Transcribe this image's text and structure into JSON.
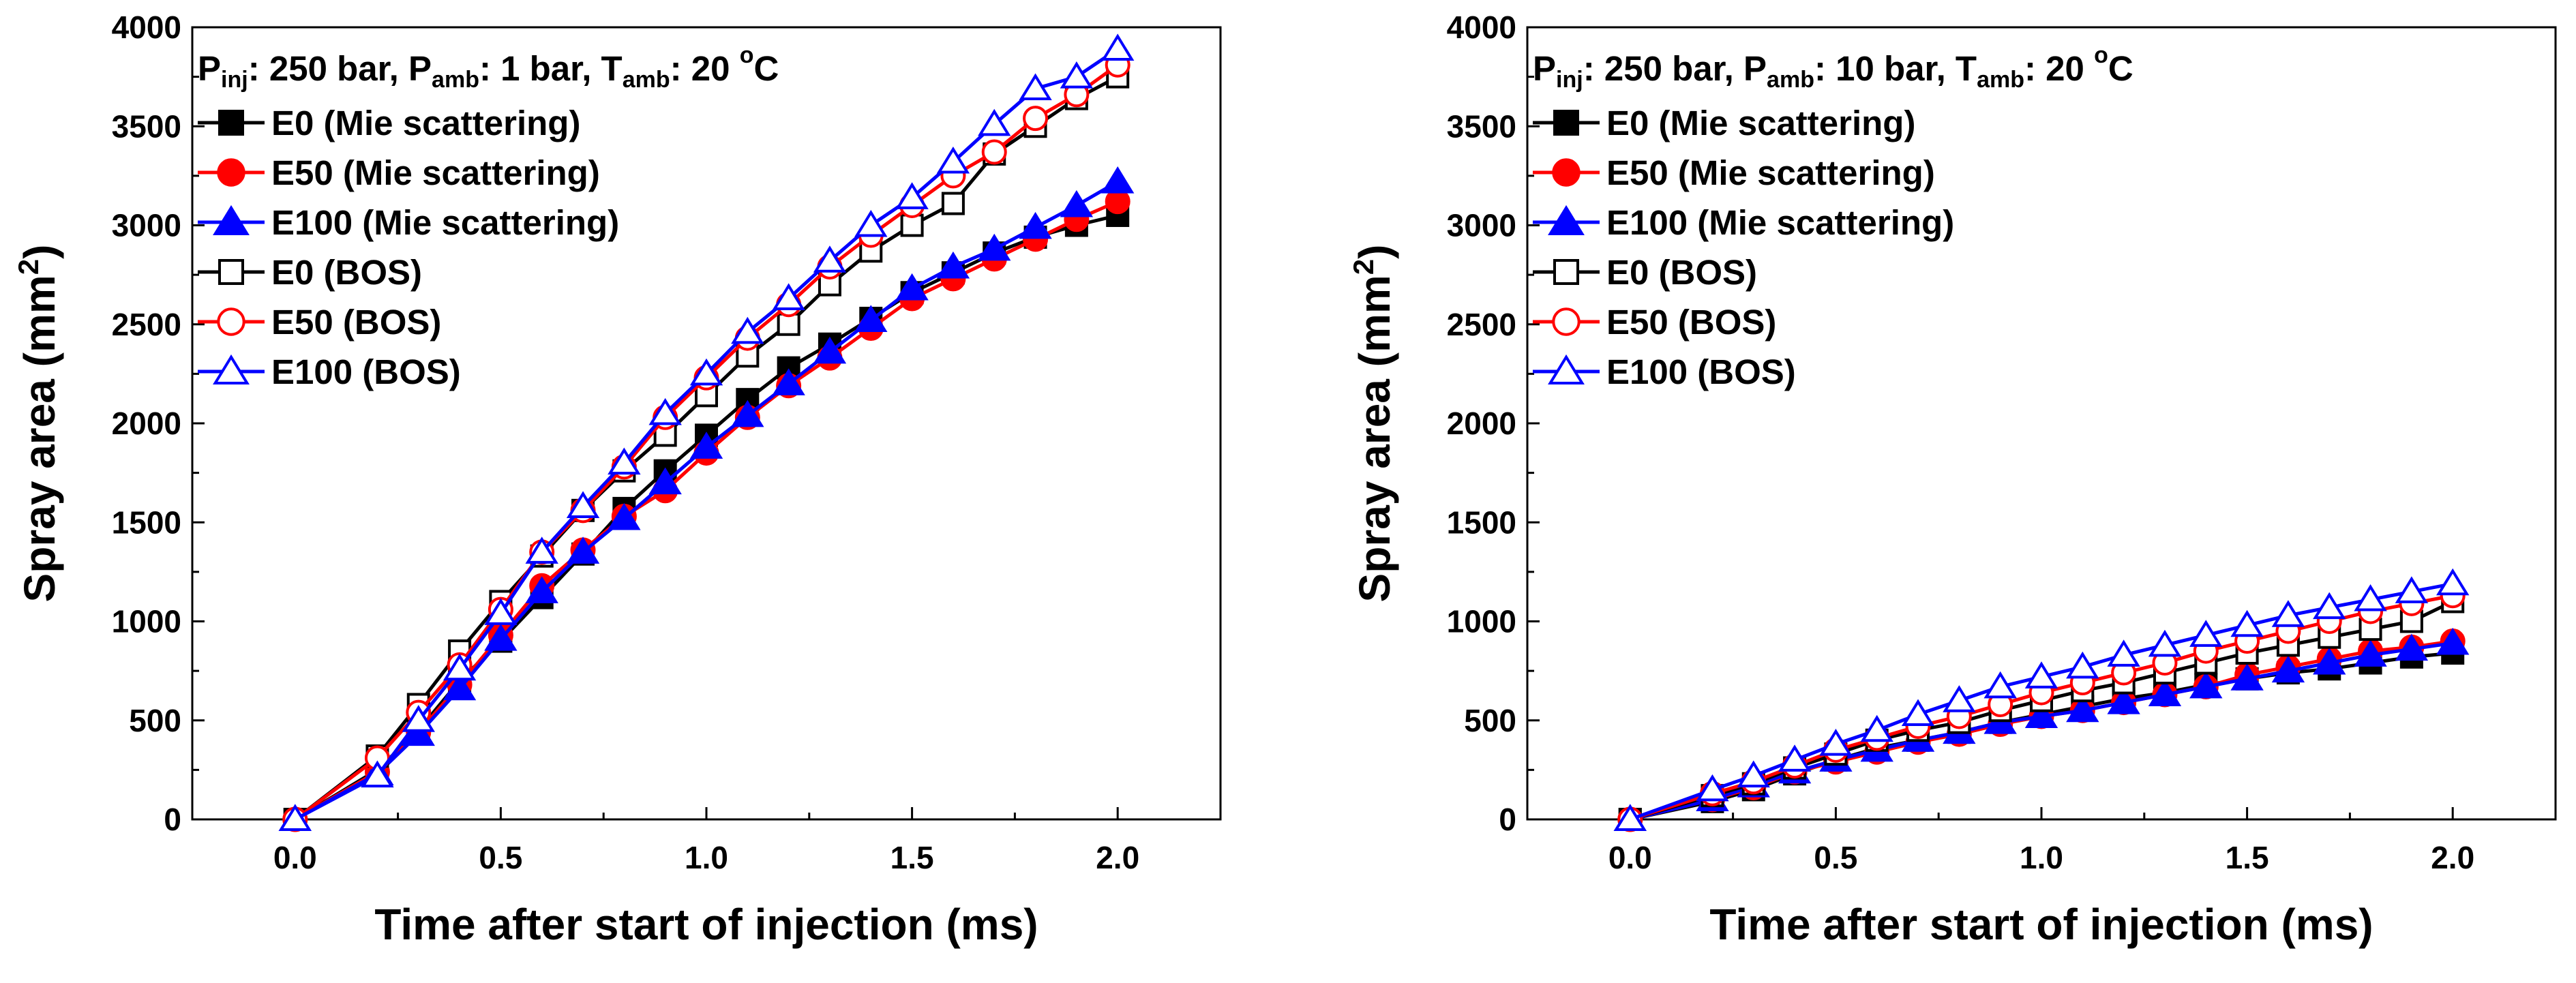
{
  "chart_data": [
    {
      "type": "line",
      "panel": "left",
      "condition": {
        "parts": [
          {
            "t": "P",
            "s": "normal"
          },
          {
            "t": "inj",
            "s": "sub"
          },
          {
            "t": ": 250 bar, ",
            "s": "normal"
          },
          {
            "t": "P",
            "s": "normal"
          },
          {
            "t": "amb",
            "s": "sub"
          },
          {
            "t": ": 1 bar, ",
            "s": "normal"
          },
          {
            "t": "T",
            "s": "normal"
          },
          {
            "t": "amb",
            "s": "sub"
          },
          {
            "t": ": 20 ",
            "s": "normal"
          },
          {
            "t": "o",
            "s": "sup"
          },
          {
            "t": "C",
            "s": "normal"
          }
        ]
      },
      "xlabel": "Time after start of injection (ms)",
      "ylabel": "Spray area (mm",
      "ylabel_sup": "2",
      "ylabel_end": ")",
      "xlim": [
        -0.25,
        2.25
      ],
      "ylim": [
        0,
        4000
      ],
      "xticks": [
        0.0,
        0.5,
        1.0,
        1.5,
        2.0
      ],
      "xtick_labels": [
        "0.0",
        "0.5",
        "1.0",
        "1.5",
        "2.0"
      ],
      "yticks": [
        0,
        500,
        1000,
        1500,
        2000,
        2500,
        3000,
        3500,
        4000
      ],
      "ytick_labels": [
        "0",
        "500",
        "1000",
        "1500",
        "2000",
        "2500",
        "3000",
        "3500",
        "4000"
      ],
      "x": [
        0.0,
        0.2,
        0.3,
        0.4,
        0.5,
        0.6,
        0.7,
        0.8,
        0.9,
        1.0,
        1.1,
        1.2,
        1.3,
        1.4,
        1.5,
        1.6,
        1.7,
        1.8,
        1.9,
        2.0
      ],
      "series": [
        {
          "name": "E0 (Mie scattering)",
          "color": "#000000",
          "marker": "square",
          "filled": true,
          "values": [
            0,
            250,
            450,
            700,
            900,
            1120,
            1340,
            1570,
            1760,
            1940,
            2120,
            2280,
            2400,
            2530,
            2660,
            2760,
            2860,
            2940,
            3000,
            3050
          ]
        },
        {
          "name": "E50 (Mie scattering)",
          "color": "#ff0000",
          "marker": "circle",
          "filled": true,
          "values": [
            0,
            240,
            440,
            680,
            930,
            1180,
            1360,
            1530,
            1660,
            1850,
            2030,
            2190,
            2330,
            2480,
            2630,
            2730,
            2830,
            2930,
            3030,
            3120
          ]
        },
        {
          "name": "E100 (Mie scattering)",
          "color": "#0000ff",
          "marker": "triangle",
          "filled": true,
          "values": [
            0,
            230,
            430,
            660,
            910,
            1150,
            1350,
            1520,
            1700,
            1880,
            2040,
            2200,
            2360,
            2520,
            2680,
            2790,
            2880,
            2990,
            3100,
            3220
          ]
        },
        {
          "name": "E0 (BOS)",
          "color": "#000000",
          "marker": "square",
          "filled": false,
          "values": [
            0,
            320,
            580,
            850,
            1100,
            1330,
            1560,
            1760,
            1940,
            2140,
            2340,
            2500,
            2700,
            2870,
            3000,
            3110,
            3360,
            3500,
            3640,
            3750
          ]
        },
        {
          "name": "E50 (BOS)",
          "color": "#ff0000",
          "marker": "circle",
          "filled": false,
          "values": [
            0,
            310,
            540,
            780,
            1060,
            1350,
            1560,
            1780,
            2030,
            2230,
            2430,
            2600,
            2790,
            2950,
            3100,
            3250,
            3370,
            3540,
            3660,
            3810
          ]
        },
        {
          "name": "E100 (BOS)",
          "color": "#0000ff",
          "marker": "triangle",
          "filled": false,
          "values": [
            0,
            220,
            500,
            760,
            1040,
            1350,
            1580,
            1800,
            2050,
            2250,
            2460,
            2630,
            2820,
            3000,
            3140,
            3320,
            3510,
            3690,
            3750,
            3890
          ]
        }
      ]
    },
    {
      "type": "line",
      "panel": "right",
      "condition": {
        "parts": [
          {
            "t": "P",
            "s": "normal"
          },
          {
            "t": "inj",
            "s": "sub"
          },
          {
            "t": ": 250 bar, ",
            "s": "normal"
          },
          {
            "t": "P",
            "s": "normal"
          },
          {
            "t": "amb",
            "s": "sub"
          },
          {
            "t": ": 10 bar, ",
            "s": "normal"
          },
          {
            "t": "T",
            "s": "normal"
          },
          {
            "t": "amb",
            "s": "sub"
          },
          {
            "t": ": 20 ",
            "s": "normal"
          },
          {
            "t": "o",
            "s": "sup"
          },
          {
            "t": "C",
            "s": "normal"
          }
        ]
      },
      "xlabel": "Time after start of injection (ms)",
      "ylabel": "Spray area (mm",
      "ylabel_sup": "2",
      "ylabel_end": ")",
      "xlim": [
        -0.25,
        2.25
      ],
      "ylim": [
        0,
        4000
      ],
      "xticks": [
        0.0,
        0.5,
        1.0,
        1.5,
        2.0
      ],
      "xtick_labels": [
        "0.0",
        "0.5",
        "1.0",
        "1.5",
        "2.0"
      ],
      "yticks": [
        0,
        500,
        1000,
        1500,
        2000,
        2500,
        3000,
        3500,
        4000
      ],
      "ytick_labels": [
        "0",
        "500",
        "1000",
        "1500",
        "2000",
        "2500",
        "3000",
        "3500",
        "4000"
      ],
      "x": [
        0.0,
        0.2,
        0.3,
        0.4,
        0.5,
        0.6,
        0.7,
        0.8,
        0.9,
        1.0,
        1.1,
        1.2,
        1.3,
        1.4,
        1.5,
        1.6,
        1.7,
        1.8,
        1.9,
        2.0
      ],
      "series": [
        {
          "name": "E0 (Mie scattering)",
          "color": "#000000",
          "marker": "square",
          "filled": true,
          "values": [
            0,
            90,
            150,
            230,
            300,
            360,
            400,
            440,
            490,
            530,
            570,
            610,
            640,
            680,
            710,
            740,
            760,
            790,
            820,
            840
          ]
        },
        {
          "name": "E50 (Mie scattering)",
          "color": "#ff0000",
          "marker": "circle",
          "filled": true,
          "values": [
            0,
            100,
            160,
            240,
            290,
            340,
            390,
            430,
            480,
            520,
            550,
            590,
            630,
            670,
            730,
            770,
            810,
            850,
            870,
            900
          ]
        },
        {
          "name": "E100 (Mie scattering)",
          "color": "#0000ff",
          "marker": "triangle",
          "filled": true,
          "values": [
            0,
            100,
            170,
            240,
            300,
            350,
            400,
            440,
            490,
            520,
            550,
            590,
            630,
            670,
            710,
            750,
            790,
            830,
            860,
            890
          ]
        },
        {
          "name": "E0 (BOS)",
          "color": "#000000",
          "marker": "square",
          "filled": false,
          "values": [
            0,
            120,
            180,
            260,
            330,
            400,
            450,
            490,
            550,
            600,
            650,
            690,
            740,
            790,
            840,
            880,
            920,
            960,
            1000,
            1100
          ]
        },
        {
          "name": "E50 (BOS)",
          "color": "#ff0000",
          "marker": "circle",
          "filled": false,
          "values": [
            0,
            130,
            190,
            270,
            350,
            410,
            470,
            520,
            580,
            640,
            690,
            740,
            790,
            850,
            900,
            950,
            1000,
            1050,
            1090,
            1130
          ]
        },
        {
          "name": "E100 (BOS)",
          "color": "#0000ff",
          "marker": "triangle",
          "filled": false,
          "values": [
            0,
            150,
            220,
            300,
            380,
            450,
            530,
            600,
            670,
            720,
            770,
            830,
            880,
            930,
            980,
            1030,
            1070,
            1110,
            1150,
            1190
          ]
        }
      ]
    }
  ]
}
